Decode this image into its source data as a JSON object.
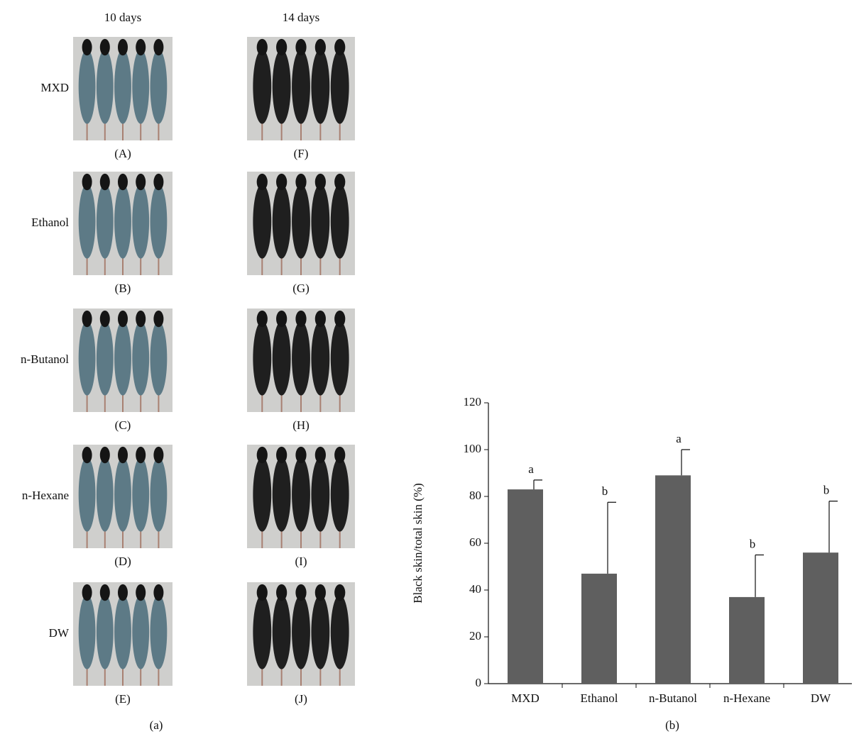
{
  "panel_a": {
    "columns": [
      "10 days",
      "14 days"
    ],
    "rows": [
      "MXD",
      "Ethanol",
      "n-Butanol",
      "n-Hexane",
      "DW"
    ],
    "photo_labels": [
      [
        "(A)",
        "(F)"
      ],
      [
        "(B)",
        "(G)"
      ],
      [
        "(C)",
        "(H)"
      ],
      [
        "(D)",
        "(I)"
      ],
      [
        "(E)",
        "(J)"
      ]
    ],
    "caption": "(a)"
  },
  "chart_data": {
    "type": "bar",
    "caption": "(b)",
    "y_label": "Black skin/total skin (%)",
    "categories": [
      "MXD",
      "Ethanol",
      "n-Butanol",
      "n-Hexane",
      "DW"
    ],
    "values": [
      83,
      47,
      89,
      37,
      56
    ],
    "errors": [
      4,
      30.5,
      11,
      18,
      22
    ],
    "significance": [
      "a",
      "b",
      "a",
      "b",
      "b"
    ],
    "color": "#5f5f5f",
    "ylim": [
      0,
      120
    ],
    "yticks": [
      0,
      20,
      40,
      60,
      80,
      100,
      120
    ],
    "grid": false
  }
}
